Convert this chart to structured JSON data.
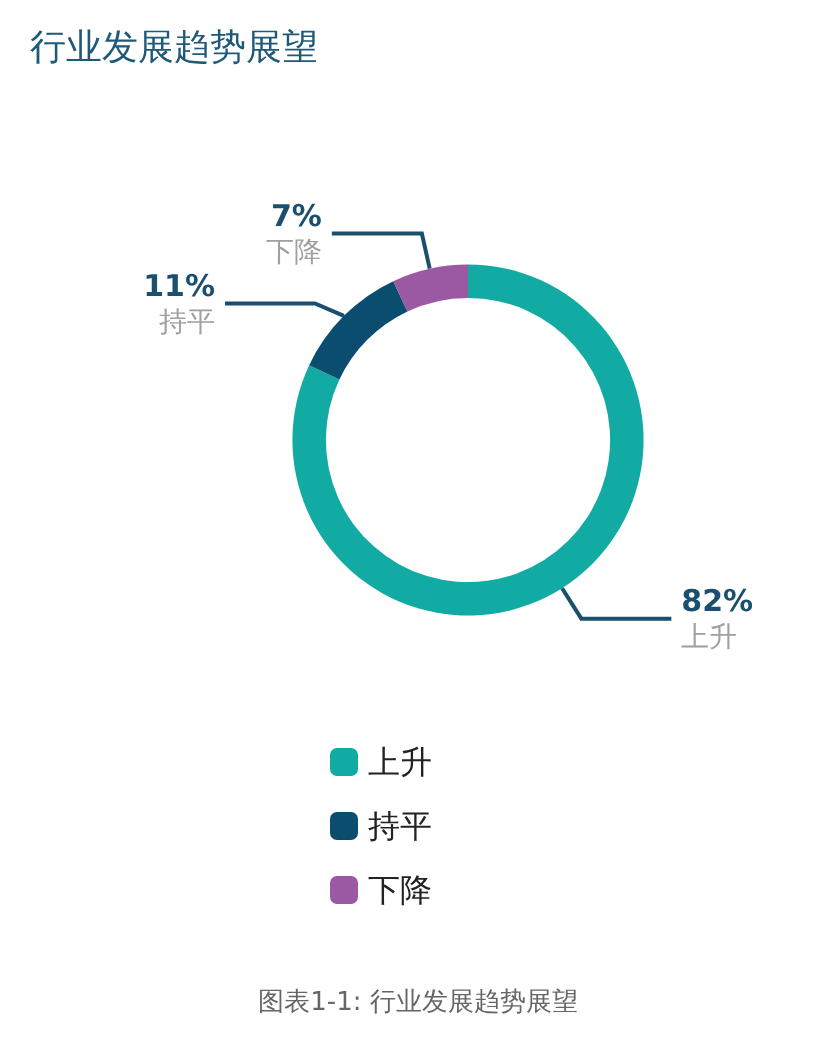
{
  "chart_data": {
    "type": "donut",
    "title": "行业发展趋势展望",
    "categories": [
      "上升",
      "持平",
      "下降"
    ],
    "values": [
      82,
      11,
      7
    ],
    "value_labels": [
      "82%",
      "11%",
      "7%"
    ],
    "colors": [
      "#11aba4",
      "#0b4d6e",
      "#9b59a3"
    ],
    "legend": "bottom",
    "annotations": [
      "图表1-1: 行业发展趋势展望"
    ]
  }
}
